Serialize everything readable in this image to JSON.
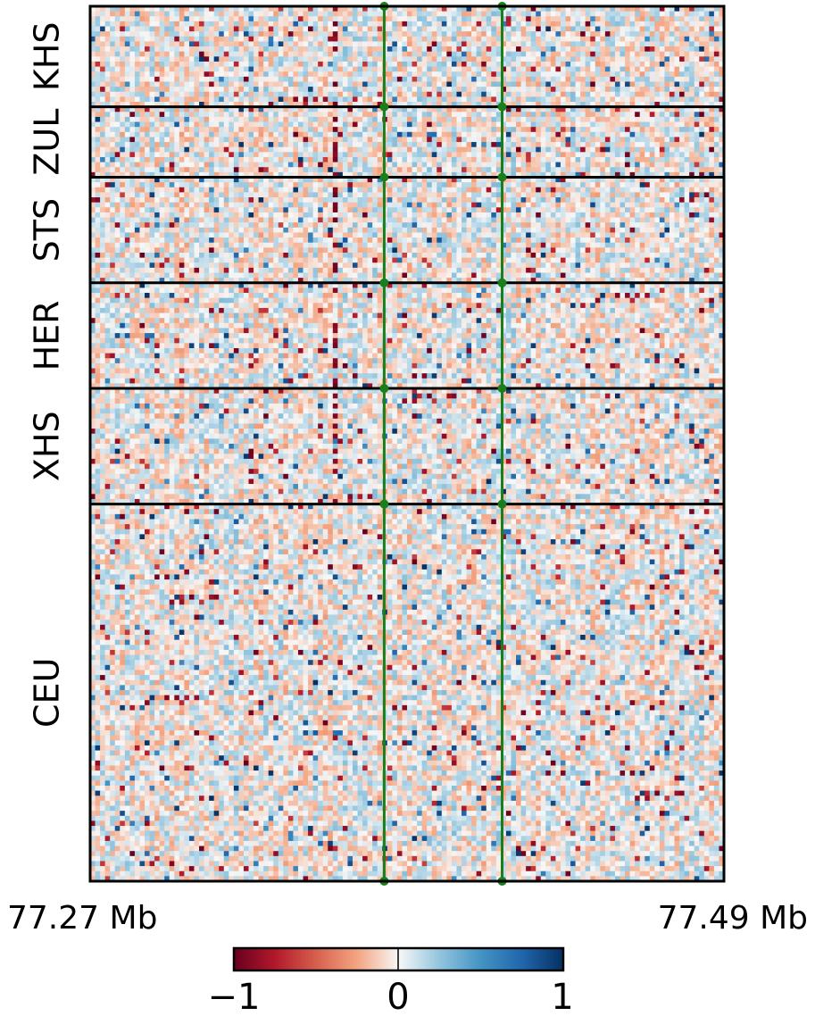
{
  "chart_data": {
    "type": "heatmap",
    "title": "",
    "xlabel": "",
    "ylabel": "",
    "x_range_labels": {
      "start": "77.27 Mb",
      "end": "77.49 Mb"
    },
    "grid": "population row blocks separated by horizontal lines; pixel columns not gridded",
    "groups": [
      {
        "name": "KHS",
        "rows": 20
      },
      {
        "name": "ZUL",
        "rows": 14
      },
      {
        "name": "STS",
        "rows": 21
      },
      {
        "name": "HER",
        "rows": 21
      },
      {
        "name": "XHS",
        "rows": 23
      },
      {
        "name": "CEU",
        "rows": 75
      }
    ],
    "columns": 128,
    "highlight_columns": [
      {
        "position_fraction": 0.464,
        "color": "#1a7f1a"
      },
      {
        "position_fraction": 0.65,
        "color": "#1a7f1a"
      }
    ],
    "colorbar": {
      "cmap": "RdBu",
      "min": -1,
      "max": 1,
      "ticks": [
        "−1",
        "0",
        "1"
      ],
      "placement": "bottom"
    },
    "notes_on_values": "cells mostly near 0 (light); scattered red (negative) and blue (positive) pixels; darker red streaks near 38% of range in upper groups"
  }
}
